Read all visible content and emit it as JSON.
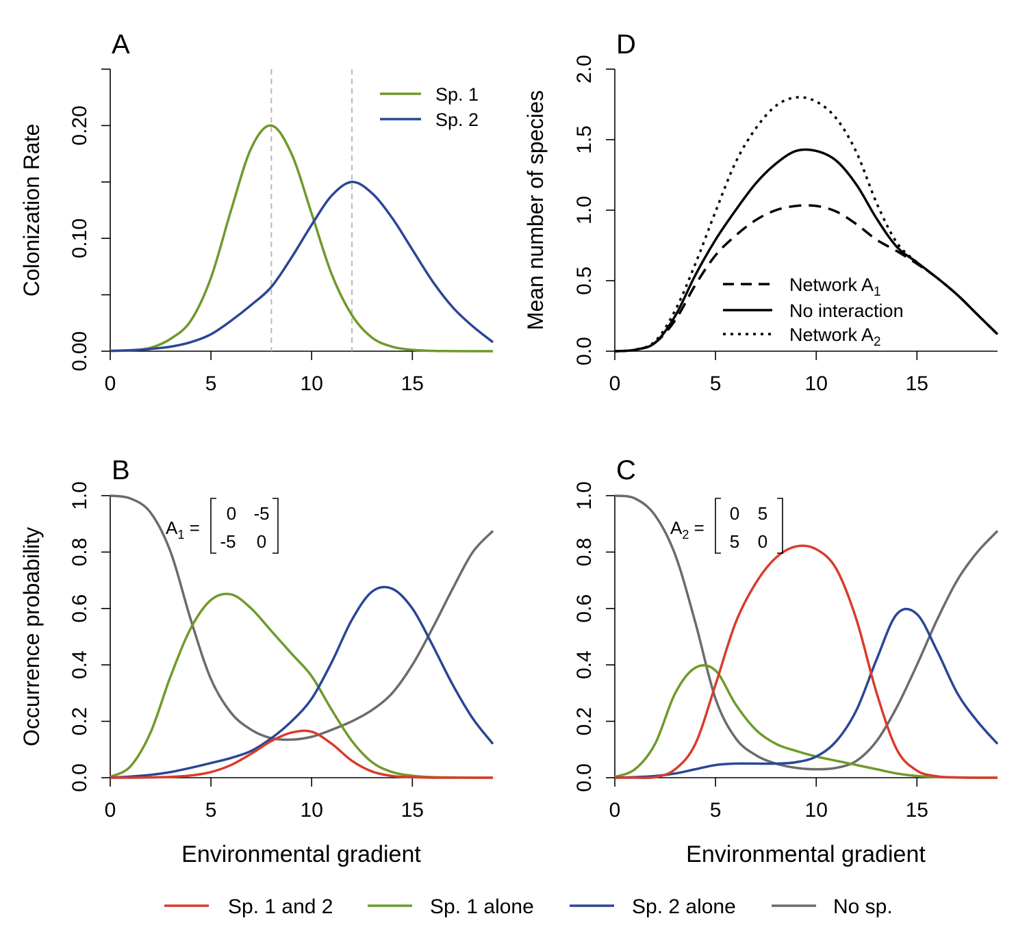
{
  "colors": {
    "sp1": "#6e9a2b",
    "sp2": "#2a4697",
    "both": "#d93b2b",
    "none": "#6b6b6b",
    "guide": "#b8b8b8",
    "black": "#000000"
  },
  "chart_data": [
    {
      "id": "A",
      "type": "line",
      "panel_label": "A",
      "ylabel": "Colonization Rate",
      "xlabel": "",
      "xlim": [
        0,
        19
      ],
      "ylim": [
        0,
        0.25
      ],
      "xticks": [
        "0",
        "5",
        "10",
        "15"
      ],
      "yticks": [
        "0.00",
        "0.10",
        "0.20"
      ],
      "vlines": [
        8,
        12
      ],
      "legend": [
        "Sp. 1",
        "Sp. 2"
      ],
      "series": [
        {
          "name": "Sp. 1",
          "color": "sp1",
          "x": [
            0,
            1,
            2,
            3,
            4,
            5,
            6,
            7,
            8,
            9,
            10,
            11,
            12,
            13,
            14,
            15,
            16,
            17,
            18,
            19
          ],
          "y": [
            0.0002,
            0.0008,
            0.003,
            0.011,
            0.027,
            0.065,
            0.125,
            0.18,
            0.2,
            0.175,
            0.122,
            0.068,
            0.032,
            0.012,
            0.004,
            0.0012,
            0.0003,
            0.0001,
            0,
            0
          ]
        },
        {
          "name": "Sp. 2",
          "color": "sp2",
          "x": [
            0,
            1,
            2,
            3,
            4,
            5,
            6,
            7,
            8,
            9,
            10,
            11,
            12,
            13,
            14,
            15,
            16,
            17,
            18,
            19
          ],
          "y": [
            0.0003,
            0.0008,
            0.002,
            0.004,
            0.008,
            0.015,
            0.027,
            0.041,
            0.057,
            0.083,
            0.112,
            0.138,
            0.15,
            0.14,
            0.118,
            0.09,
            0.062,
            0.039,
            0.022,
            0.008
          ]
        }
      ]
    },
    {
      "id": "D",
      "type": "line",
      "panel_label": "D",
      "ylabel": "Mean number of species",
      "xlabel": "",
      "xlim": [
        0,
        19
      ],
      "ylim": [
        0,
        2
      ],
      "xticks": [
        "0",
        "5",
        "10",
        "15"
      ],
      "yticks": [
        "0.0",
        "0.5",
        "1.0",
        "1.5",
        "2.0"
      ],
      "legend": [
        "Network A",
        "No interaction",
        "Network A"
      ],
      "legend_subscripts": [
        "1",
        "",
        "2"
      ],
      "series": [
        {
          "name": "Network A1",
          "style": "dashed",
          "x": [
            0,
            1,
            2,
            3,
            4,
            5,
            6,
            7,
            8,
            9,
            10,
            11,
            12,
            13,
            14,
            15,
            16,
            17,
            18,
            19
          ],
          "y": [
            0,
            0.01,
            0.06,
            0.22,
            0.47,
            0.68,
            0.82,
            0.93,
            1.0,
            1.03,
            1.03,
            0.99,
            0.9,
            0.79,
            0.71,
            0.62,
            0.52,
            0.4,
            0.26,
            0.12
          ]
        },
        {
          "name": "No interaction",
          "style": "solid",
          "x": [
            0,
            1,
            2,
            3,
            4,
            5,
            6,
            7,
            8,
            9,
            10,
            11,
            12,
            13,
            14,
            15,
            16,
            17,
            18,
            19
          ],
          "y": [
            0,
            0.01,
            0.06,
            0.25,
            0.54,
            0.79,
            1.0,
            1.19,
            1.33,
            1.42,
            1.42,
            1.35,
            1.18,
            0.94,
            0.74,
            0.63,
            0.52,
            0.4,
            0.26,
            0.12
          ]
        },
        {
          "name": "Network A2",
          "style": "dotted",
          "x": [
            0,
            1,
            2,
            3,
            4,
            5,
            6,
            7,
            8,
            9,
            10,
            11,
            12,
            13,
            14,
            15,
            16,
            17,
            18,
            19
          ],
          "y": [
            0,
            0.01,
            0.07,
            0.29,
            0.62,
            0.99,
            1.34,
            1.58,
            1.74,
            1.8,
            1.77,
            1.65,
            1.41,
            1.05,
            0.77,
            0.63,
            0.52,
            0.4,
            0.26,
            0.12
          ]
        }
      ]
    },
    {
      "id": "B",
      "type": "line",
      "panel_label": "B",
      "ylabel": "Occurrence probability",
      "xlabel": "Environmental gradient",
      "xlim": [
        0,
        19
      ],
      "ylim": [
        0,
        1
      ],
      "xticks": [
        "0",
        "5",
        "10",
        "15"
      ],
      "yticks": [
        "0.0",
        "0.2",
        "0.4",
        "0.6",
        "0.8",
        "1.0"
      ],
      "matrix_label": "A",
      "matrix_subscript": "1",
      "matrix": [
        [
          "0",
          "-5"
        ],
        [
          "-5",
          "0"
        ]
      ],
      "series": [
        {
          "name": "No sp.",
          "color": "none",
          "x": [
            0,
            1,
            2,
            3,
            4,
            5,
            6,
            7,
            8,
            9,
            10,
            11,
            12,
            13,
            14,
            15,
            16,
            17,
            18,
            19
          ],
          "y": [
            1.0,
            0.99,
            0.94,
            0.8,
            0.56,
            0.35,
            0.23,
            0.17,
            0.14,
            0.135,
            0.145,
            0.17,
            0.2,
            0.24,
            0.3,
            0.4,
            0.53,
            0.67,
            0.8,
            0.875
          ]
        },
        {
          "name": "Sp. 1 alone",
          "color": "sp1",
          "x": [
            0,
            1,
            2,
            3,
            4,
            5,
            6,
            7,
            8,
            9,
            10,
            11,
            12,
            13,
            14,
            15,
            16,
            17,
            18,
            19
          ],
          "y": [
            0.003,
            0.04,
            0.16,
            0.36,
            0.53,
            0.63,
            0.65,
            0.6,
            0.52,
            0.44,
            0.36,
            0.24,
            0.13,
            0.055,
            0.02,
            0.007,
            0.002,
            0.001,
            0,
            0
          ]
        },
        {
          "name": "Sp. 2 alone",
          "color": "sp2",
          "x": [
            0,
            1,
            2,
            3,
            4,
            5,
            6,
            7,
            8,
            9,
            10,
            11,
            12,
            13,
            14,
            15,
            16,
            17,
            18,
            19
          ],
          "y": [
            0,
            0.004,
            0.01,
            0.02,
            0.035,
            0.052,
            0.07,
            0.095,
            0.14,
            0.2,
            0.28,
            0.41,
            0.56,
            0.66,
            0.67,
            0.6,
            0.47,
            0.33,
            0.21,
            0.12
          ]
        },
        {
          "name": "Sp. 1 and 2",
          "color": "both",
          "x": [
            0,
            1,
            2,
            3,
            4,
            5,
            6,
            7,
            8,
            9,
            10,
            11,
            12,
            13,
            14,
            15,
            16,
            17,
            18,
            19
          ],
          "y": [
            0,
            0,
            0.001,
            0.003,
            0.008,
            0.02,
            0.045,
            0.085,
            0.13,
            0.16,
            0.163,
            0.12,
            0.06,
            0.022,
            0.006,
            0.002,
            0,
            0,
            0,
            0
          ]
        }
      ]
    },
    {
      "id": "C",
      "type": "line",
      "panel_label": "C",
      "ylabel": "",
      "xlabel": "Environmental gradient",
      "xlim": [
        0,
        19
      ],
      "ylim": [
        0,
        1
      ],
      "xticks": [
        "0",
        "5",
        "10",
        "15"
      ],
      "yticks": [
        "0.0",
        "0.2",
        "0.4",
        "0.6",
        "0.8",
        "1.0"
      ],
      "matrix_label": "A",
      "matrix_subscript": "2",
      "matrix": [
        [
          "0",
          "5"
        ],
        [
          "5",
          "0"
        ]
      ],
      "series": [
        {
          "name": "No sp.",
          "color": "none",
          "x": [
            0,
            1,
            2,
            3,
            4,
            5,
            6,
            7,
            8,
            9,
            10,
            11,
            12,
            13,
            14,
            15,
            16,
            17,
            18,
            19
          ],
          "y": [
            1.0,
            0.99,
            0.93,
            0.79,
            0.55,
            0.28,
            0.14,
            0.08,
            0.05,
            0.035,
            0.03,
            0.035,
            0.06,
            0.13,
            0.25,
            0.4,
            0.56,
            0.7,
            0.8,
            0.875
          ]
        },
        {
          "name": "Sp. 1 alone",
          "color": "sp1",
          "x": [
            0,
            1,
            2,
            3,
            4,
            5,
            6,
            7,
            8,
            9,
            10,
            11,
            12,
            13,
            14,
            15,
            16,
            17,
            18,
            19
          ],
          "y": [
            0.003,
            0.03,
            0.12,
            0.3,
            0.39,
            0.38,
            0.26,
            0.17,
            0.12,
            0.095,
            0.075,
            0.06,
            0.045,
            0.03,
            0.015,
            0.006,
            0.002,
            0.001,
            0,
            0
          ]
        },
        {
          "name": "Sp. 2 alone",
          "color": "sp2",
          "x": [
            0,
            1,
            2,
            3,
            4,
            5,
            6,
            7,
            8,
            9,
            10,
            11,
            12,
            13,
            14,
            15,
            16,
            17,
            18,
            19
          ],
          "y": [
            0,
            0.002,
            0.006,
            0.015,
            0.03,
            0.045,
            0.05,
            0.05,
            0.05,
            0.055,
            0.075,
            0.13,
            0.24,
            0.42,
            0.58,
            0.58,
            0.45,
            0.3,
            0.2,
            0.12
          ]
        },
        {
          "name": "Sp. 1 and 2",
          "color": "both",
          "x": [
            0,
            1,
            2,
            3,
            4,
            5,
            6,
            7,
            8,
            9,
            10,
            11,
            12,
            13,
            14,
            15,
            16,
            17,
            18,
            19
          ],
          "y": [
            0,
            0,
            0.002,
            0.03,
            0.12,
            0.33,
            0.55,
            0.69,
            0.78,
            0.82,
            0.81,
            0.74,
            0.56,
            0.3,
            0.1,
            0.025,
            0.005,
            0.001,
            0,
            0
          ]
        }
      ]
    }
  ],
  "bottom_legend": [
    {
      "label": "Sp. 1 and 2",
      "color": "both"
    },
    {
      "label": "Sp. 1 alone",
      "color": "sp1"
    },
    {
      "label": "Sp. 2 alone",
      "color": "sp2"
    },
    {
      "label": "No sp.",
      "color": "none"
    }
  ]
}
